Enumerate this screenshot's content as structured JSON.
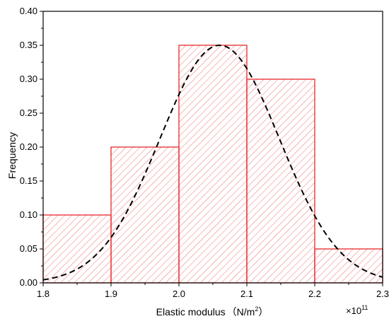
{
  "chart_data": {
    "type": "bar",
    "subtype": "histogram",
    "bins": [
      {
        "start": 1.8,
        "end": 1.9,
        "value": 0.1
      },
      {
        "start": 1.9,
        "end": 2.0,
        "value": 0.2
      },
      {
        "start": 2.0,
        "end": 2.1,
        "value": 0.35
      },
      {
        "start": 2.1,
        "end": 2.2,
        "value": 0.3
      },
      {
        "start": 2.2,
        "end": 2.3,
        "value": 0.05
      }
    ],
    "fit_curve": {
      "type": "normal",
      "style": "dashed",
      "color": "#000000",
      "mean": 2.06,
      "sd": 0.088,
      "peak": 0.35
    },
    "xlabel": "Elastic modulus",
    "xlabel_unit_base": "（N/m",
    "xlabel_unit_exp": "2",
    "xlabel_unit_close": "）",
    "x_multiplier_base": "×10",
    "x_multiplier_exp": "11",
    "ylabel": "Frequency",
    "xlim": [
      1.8,
      2.3
    ],
    "ylim": [
      0.0,
      0.4
    ],
    "x_ticks": [
      "1.8",
      "1.9",
      "2.0",
      "2.1",
      "2.2",
      "2.3"
    ],
    "y_ticks": [
      "0.00",
      "0.05",
      "0.10",
      "0.15",
      "0.20",
      "0.25",
      "0.30",
      "0.35",
      "0.40"
    ],
    "grid": false,
    "legend": "none",
    "bar_edge_color": "#e8282b",
    "bar_hatch_color": "#f07070"
  }
}
